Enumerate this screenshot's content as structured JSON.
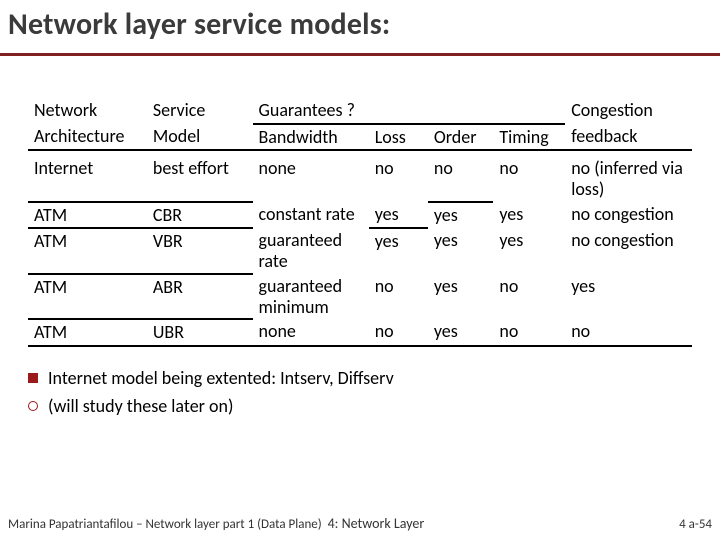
{
  "title": "Network layer service models:",
  "headers": {
    "arch_l1": "Network",
    "arch_l2": "Architecture",
    "svc_l1": "Service",
    "svc_l2": "Model",
    "guarantees": "Guarantees ?",
    "bw": "Bandwidth",
    "loss": "Loss",
    "order": "Order",
    "timing": "Timing",
    "cong_l1": "Congestion",
    "cong_l2": "feedback"
  },
  "rows": [
    {
      "arch": "Internet",
      "svc": "best effort",
      "bw": "none",
      "loss": "no",
      "order": "no",
      "timing": "no",
      "cong": "no (inferred via loss)"
    },
    {
      "arch": "ATM",
      "svc": "CBR",
      "bw": "constant rate",
      "loss": "yes",
      "order": "yes",
      "timing": "yes",
      "cong": "no congestion"
    },
    {
      "arch": "ATM",
      "svc": "VBR",
      "bw": "guaranteed rate",
      "loss": "yes",
      "order": "yes",
      "timing": "yes",
      "cong": "no congestion"
    },
    {
      "arch": "ATM",
      "svc": "ABR",
      "bw": "guaranteed minimum",
      "loss": "no",
      "order": "yes",
      "timing": "no",
      "cong": "yes"
    },
    {
      "arch": "ATM",
      "svc": "UBR",
      "bw": "none",
      "loss": "no",
      "order": "yes",
      "timing": "no",
      "cong": "no"
    }
  ],
  "bullets": {
    "b1": "Internet model being extented: Intserv, Diffserv",
    "b2": "(will study these later on)"
  },
  "footer": {
    "left": "Marina Papatriantafilou – Network layer part 1 (Data Plane)",
    "mid": "4: Network Layer",
    "num": "4 a-54"
  },
  "colors": {
    "title_rule": "#802020",
    "bullet": "#9b1b1b"
  }
}
